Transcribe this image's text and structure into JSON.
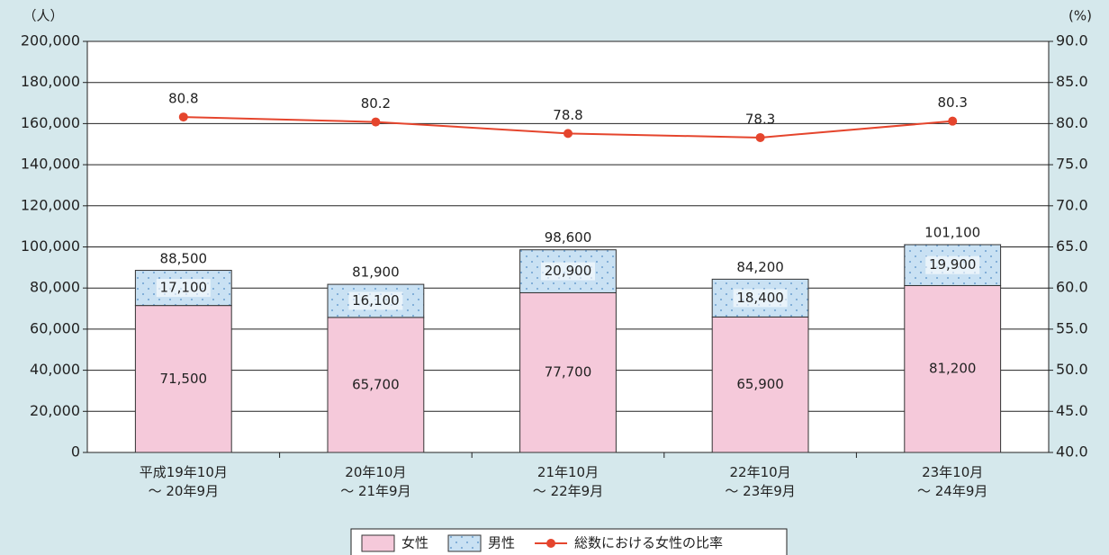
{
  "chart_data": {
    "type": "bar",
    "stacked": true,
    "y_axis_label": "（人）",
    "y2_axis_label": "(%)",
    "categories": [
      "平成19年10月\n～ 20年9月",
      "20年10月\n～ 21年9月",
      "21年10月\n～ 22年9月",
      "22年10月\n～ 23年9月",
      "23年10月\n～ 24年9月"
    ],
    "series": [
      {
        "name": "女性",
        "color": "#f5c9da",
        "values": [
          71500,
          65700,
          77700,
          65900,
          81200
        ],
        "value_labels": [
          "71,500",
          "65,700",
          "77,700",
          "65,900",
          "81,200"
        ]
      },
      {
        "name": "男性",
        "color": "#c9e1f3",
        "pattern": "dots",
        "values": [
          17100,
          16100,
          20900,
          18400,
          19900
        ],
        "value_labels": [
          "17,100",
          "16,100",
          "20,900",
          "18,400",
          "19,900"
        ]
      },
      {
        "name": "総数における女性の比率",
        "type": "line",
        "axis": "y2",
        "color": "#e5452d",
        "values": [
          80.8,
          80.2,
          78.8,
          78.3,
          80.3
        ]
      }
    ],
    "totals": {
      "values": [
        88500,
        81900,
        98600,
        84200,
        101100
      ],
      "value_labels": [
        "88,500",
        "81,900",
        "98,600",
        "84,200",
        "101,100"
      ]
    },
    "ylim": [
      0,
      200000
    ],
    "yticks": [
      0,
      {
        "value": 20000,
        "label": "20,000"
      },
      {
        "value": 40000,
        "label": "40,000"
      },
      {
        "value": 60000,
        "label": "60,000"
      },
      {
        "value": 80000,
        "label": "80,000"
      },
      {
        "value": 100000,
        "label": "100,000"
      },
      {
        "value": 120000,
        "label": "120,000"
      },
      {
        "value": 140000,
        "label": "140,000"
      },
      {
        "value": 160000,
        "label": "160,000"
      },
      {
        "value": 180000,
        "label": "180,000"
      },
      {
        "value": 200000,
        "label": "200,000"
      }
    ],
    "y2lim": [
      40,
      90
    ],
    "y2ticks": [
      {
        "value": 40,
        "label": "40.0"
      },
      {
        "value": 45,
        "label": "45.0"
      },
      {
        "value": 50,
        "label": "50.0"
      },
      {
        "value": 55,
        "label": "55.0"
      },
      {
        "value": 60,
        "label": "60.0"
      },
      {
        "value": 65,
        "label": "65.0"
      },
      {
        "value": 70,
        "label": "70.0"
      },
      {
        "value": 75,
        "label": "75.0"
      },
      {
        "value": 80,
        "label": "80.0"
      },
      {
        "value": 85,
        "label": "85.0"
      },
      {
        "value": 90,
        "label": "90.0"
      }
    ],
    "grid": true,
    "legend": "bottom"
  }
}
